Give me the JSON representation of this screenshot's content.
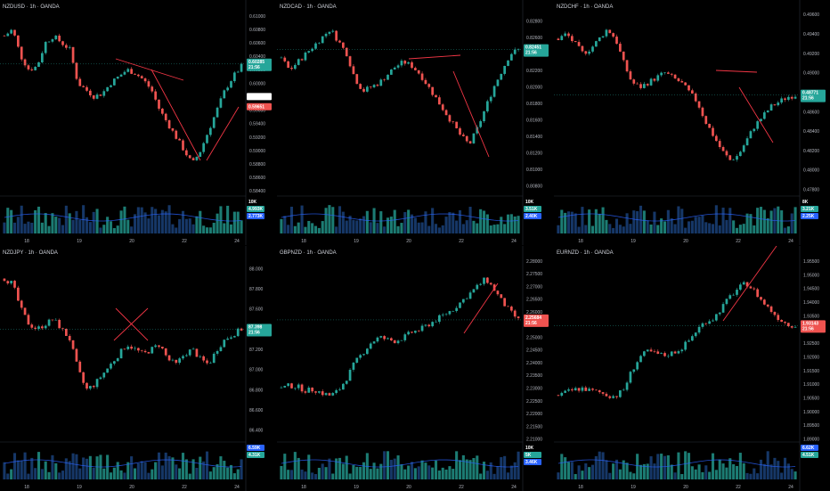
{
  "colors": {
    "up": "#26a69a",
    "down": "#ef5350",
    "volUp": "#26a69a",
    "volDown": "#1e4a8a",
    "drawing": "#f23645",
    "bg": "#000000"
  },
  "chart_data": [
    {
      "type": "candlestick",
      "title": "NZDUSD · 1h · OANDA",
      "ylabel_ticks": [
        "0.61000",
        "0.60800",
        "0.60600",
        "0.60400",
        "0.60200",
        "0.60000",
        "0.59800",
        "0.59600",
        "0.59400",
        "0.59200",
        "0.59000",
        "0.58800",
        "0.58600",
        "0.58400"
      ],
      "ylim": [
        0.5835,
        0.6105
      ],
      "x_ticks": [
        "18",
        "19",
        "20",
        "22",
        "24"
      ],
      "price_tag": "0.60285",
      "price_tag_time": "21:56",
      "other_tags": [
        {
          "text": "0.59801",
          "color": "#ffffff"
        },
        {
          "text": "0.59651",
          "color": "#ef5350"
        }
      ],
      "volume_tags": [
        "10K",
        "4.993K",
        "2.773K"
      ],
      "series_shape": [
        0.607,
        0.608,
        0.604,
        0.602,
        0.6025,
        0.606,
        0.607,
        0.606,
        0.605,
        0.6,
        0.599,
        0.598,
        0.5985,
        0.6,
        0.601,
        0.602,
        0.6015,
        0.6005,
        0.599,
        0.596,
        0.594,
        0.592,
        0.59,
        0.588,
        0.59,
        0.593,
        0.596,
        0.599,
        0.601,
        0.6025
      ]
    },
    {
      "type": "candlestick",
      "title": "NZDCAD · 1h · OANDA",
      "ylabel_ticks": [
        "0.82800",
        "0.82600",
        "0.82400",
        "0.82200",
        "0.82000",
        "0.81800",
        "0.81600",
        "0.81400",
        "0.81200",
        "0.81000",
        "0.80800"
      ],
      "ylim": [
        0.807,
        0.829
      ],
      "x_ticks": [
        "18",
        "19",
        "20",
        "22",
        "24"
      ],
      "price_tag": "0.82451",
      "price_tag_time": "21:56",
      "other_tags": [],
      "volume_tags": [
        "10K",
        "3.51K",
        "2.40K"
      ],
      "series_shape": [
        0.8235,
        0.822,
        0.823,
        0.824,
        0.825,
        0.826,
        0.827,
        0.8255,
        0.824,
        0.821,
        0.8195,
        0.82,
        0.8205,
        0.8215,
        0.8225,
        0.823,
        0.8225,
        0.8215,
        0.82,
        0.8185,
        0.817,
        0.8155,
        0.814,
        0.813,
        0.815,
        0.8175,
        0.82,
        0.822,
        0.824,
        0.8245
      ]
    },
    {
      "type": "candlestick",
      "title": "NZDCHF · 1h · OANDA",
      "ylabel_ticks": [
        "0.49600",
        "0.49400",
        "0.49200",
        "0.49000",
        "0.48800",
        "0.48600",
        "0.48400",
        "0.48200",
        "0.48000",
        "0.47800"
      ],
      "ylim": [
        0.4775,
        0.4962
      ],
      "x_ticks": [
        "18",
        "19",
        "20",
        "22",
        "24"
      ],
      "price_tag": "0.48771",
      "price_tag_time": "21:56",
      "other_tags": [],
      "volume_tags": [
        "8K",
        "3.21K",
        "2.25K"
      ],
      "series_shape": [
        0.4935,
        0.494,
        0.493,
        0.492,
        0.4925,
        0.4935,
        0.4945,
        0.4935,
        0.491,
        0.489,
        0.4885,
        0.489,
        0.4895,
        0.49,
        0.4895,
        0.489,
        0.488,
        0.487,
        0.485,
        0.4835,
        0.482,
        0.481,
        0.4815,
        0.483,
        0.4845,
        0.4855,
        0.4865,
        0.487,
        0.4875,
        0.4877
      ]
    },
    {
      "type": "candlestick",
      "title": "NZDJPY · 1h · OANDA",
      "ylabel_ticks": [
        "88.000",
        "87.800",
        "87.600",
        "87.400",
        "87.200",
        "87.000",
        "86.800",
        "86.600",
        "86.400"
      ],
      "ylim": [
        86.3,
        88.1
      ],
      "x_ticks": [
        "18",
        "19",
        "20",
        "22",
        "24"
      ],
      "price_tag": "87.398",
      "price_tag_time": "21:56",
      "other_tags": [],
      "volume_tags": [
        "6.59K",
        "4.31K"
      ],
      "series_shape": [
        87.9,
        87.85,
        87.6,
        87.45,
        87.4,
        87.45,
        87.5,
        87.4,
        87.3,
        87.0,
        86.8,
        86.85,
        86.95,
        87.05,
        87.15,
        87.25,
        87.2,
        87.15,
        87.2,
        87.25,
        87.1,
        87.05,
        87.15,
        87.2,
        87.1,
        87.05,
        87.2,
        87.3,
        87.35,
        87.4
      ]
    },
    {
      "type": "candlestick",
      "title": "GBPNZD · 1h · OANDA",
      "ylabel_ticks": [
        "2.28000",
        "2.27500",
        "2.27000",
        "2.26500",
        "2.26000",
        "2.25500",
        "2.25000",
        "2.24500",
        "2.24000",
        "2.23500",
        "2.23000",
        "2.22500",
        "2.22000",
        "2.21500",
        "2.21000"
      ],
      "ylim": [
        2.2095,
        2.281
      ],
      "x_ticks": [
        "18",
        "19",
        "20",
        "22",
        "24"
      ],
      "price_tag": "2.25684",
      "price_tag_time": "21:56",
      "other_tags": [],
      "volume_tags": [
        "10K",
        "5K",
        "3.46K"
      ],
      "series_shape": [
        2.23,
        2.231,
        2.2305,
        2.229,
        2.2295,
        2.228,
        2.227,
        2.229,
        2.234,
        2.24,
        2.244,
        2.248,
        2.25,
        2.249,
        2.2485,
        2.25,
        2.252,
        2.253,
        2.255,
        2.257,
        2.259,
        2.261,
        2.264,
        2.267,
        2.27,
        2.273,
        2.269,
        2.264,
        2.26,
        2.2568
      ]
    },
    {
      "type": "candlestick",
      "title": "EURNZD · 1h · OANDA",
      "ylabel_ticks": [
        "1.95500",
        "1.95000",
        "1.94500",
        "1.94000",
        "1.93500",
        "1.93000",
        "1.92500",
        "1.92000",
        "1.91500",
        "1.91000",
        "1.90500",
        "1.90000",
        "1.89500",
        "1.89000"
      ],
      "ylim": [
        1.8895,
        1.956
      ],
      "x_ticks": [
        "18",
        "19",
        "20",
        "22",
        "24"
      ],
      "price_tag": "1.93143",
      "price_tag_time": "21:56",
      "other_tags": [],
      "volume_tags": [
        "6.62K",
        "4.51K"
      ],
      "series_shape": [
        1.906,
        1.907,
        1.908,
        1.9085,
        1.9075,
        1.907,
        1.906,
        1.9055,
        1.908,
        1.915,
        1.92,
        1.922,
        1.921,
        1.9205,
        1.9215,
        1.923,
        1.926,
        1.93,
        1.933,
        1.934,
        1.938,
        1.942,
        1.945,
        1.947,
        1.944,
        1.94,
        1.937,
        1.934,
        1.932,
        1.9314
      ]
    }
  ]
}
